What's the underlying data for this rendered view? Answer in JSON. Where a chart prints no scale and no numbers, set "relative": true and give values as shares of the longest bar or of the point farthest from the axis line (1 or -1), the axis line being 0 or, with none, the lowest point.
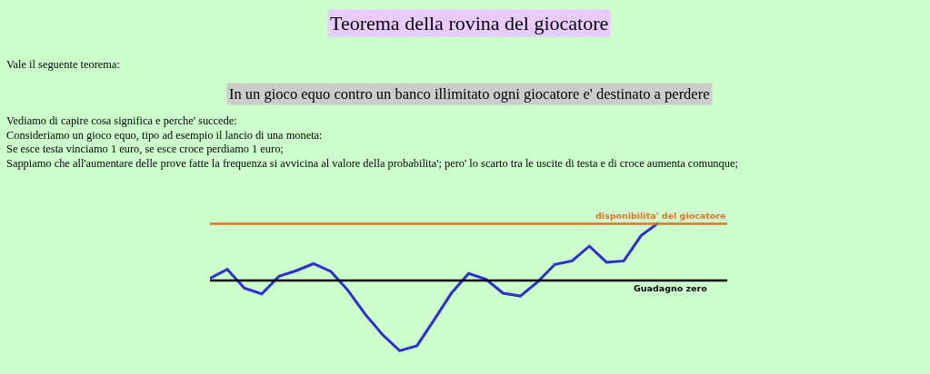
{
  "chart_data": {
    "type": "line",
    "title": "Teorema della rovina del giocatore",
    "subtitle": "In un gioco equo contro un banco illimitato ogni giocatore e' destinato a perdere",
    "annotations": [
      "Vale il seguente teorema:",
      "Vediamo di capire cosa significa e perche' succede:",
      "Consideriamo un gioco equo, tipo ad esempio il lancio di una moneta:",
      "Se esce testa vinciamo 1 euro, se esce croce perdiamo 1 euro;",
      "Sappiamo che all'aumentare delle prove fatte la frequenza si avvicina al valore della probabilita'; pero' lo scarto tra le uscite di testa e di croce aumenta comunque;"
    ],
    "relative": true,
    "categories": [
      null,
      null,
      null,
      null,
      null,
      null,
      null,
      null,
      null,
      null,
      null,
      null,
      null,
      null,
      null,
      null,
      null,
      null,
      null,
      null,
      null,
      null,
      null,
      null,
      null,
      null,
      null,
      null,
      null,
      null,
      null
    ],
    "series": [
      {
        "color": "#2e2ed6",
        "values": [
          0.03,
          0.16,
          -0.11,
          -0.19,
          0.06,
          0.14,
          0.24,
          0.13,
          -0.14,
          -0.48,
          -0.77,
          -1,
          -0.93,
          -0.56,
          -0.18,
          0.1,
          0.02,
          -0.18,
          -0.22,
          -0.02,
          0.23,
          0.28,
          0.49,
          0.26,
          0.28,
          0.64,
          0.82,
          null,
          null,
          null,
          null
        ]
      }
    ],
    "ref_lines": [
      {
        "axis": "y",
        "value": 0.81,
        "label": "disponibilita' del giocatore",
        "color": "#e4732a"
      },
      {
        "axis": "y",
        "value": 0,
        "label": "Guadagno zero",
        "color": "#000000"
      }
    ],
    "marker": "none",
    "line_style": "solid"
  }
}
